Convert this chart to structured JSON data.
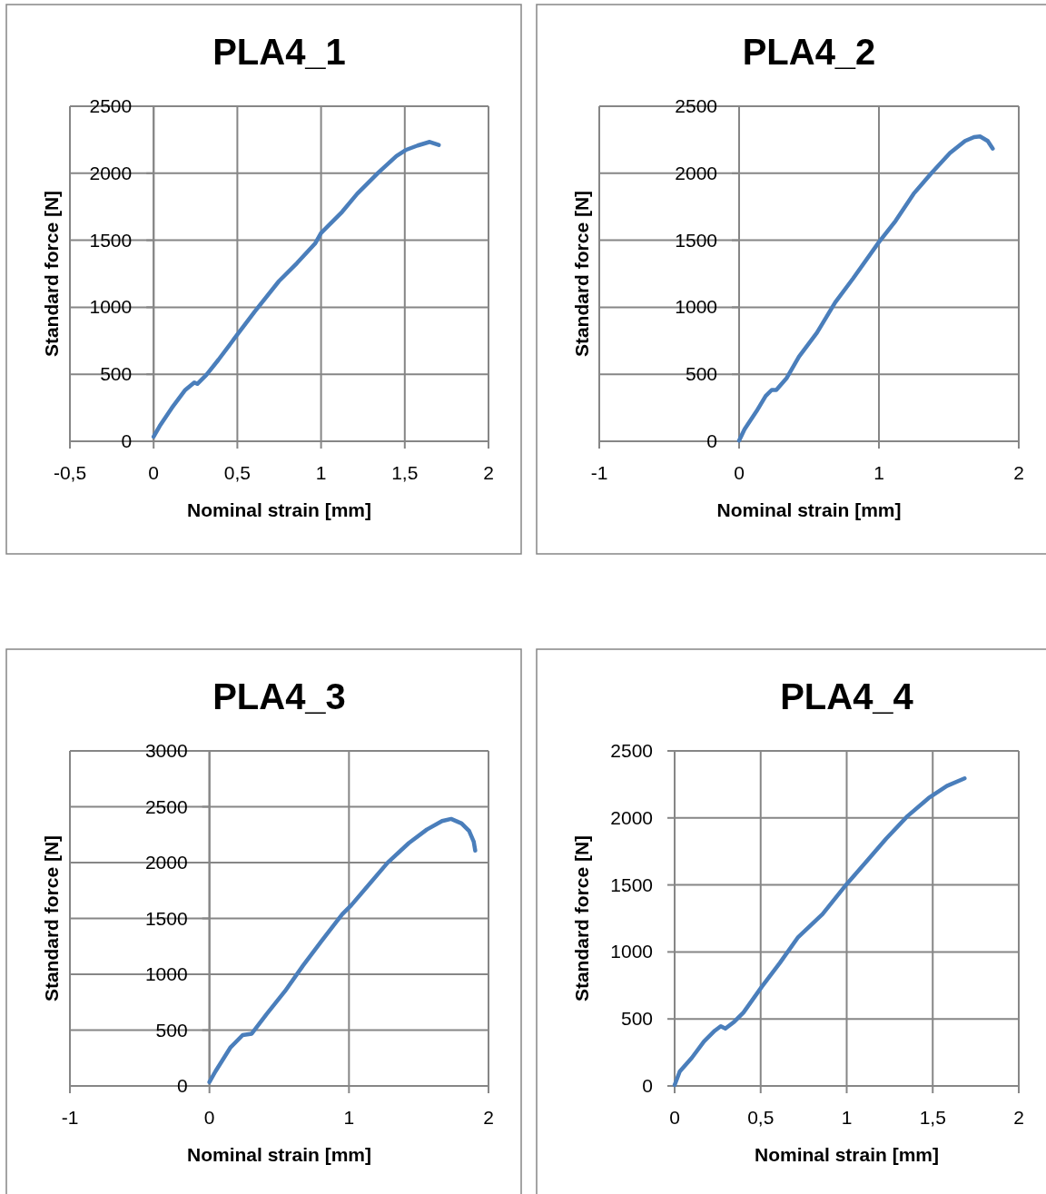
{
  "chart_data": [
    {
      "type": "line",
      "title": "PLA4_1",
      "xlabel": "Nominal strain [mm]",
      "ylabel": "Standard force [N]",
      "xlim": [
        -0.5,
        2
      ],
      "xticks": [
        {
          "value": -0.5,
          "label": "-0,5"
        },
        0,
        {
          "value": 0.5,
          "label": "0,5"
        },
        1,
        {
          "value": 1.5,
          "label": "1,5"
        },
        2
      ],
      "ylim": [
        0,
        2500
      ],
      "yticks": [
        0,
        500,
        1000,
        1500,
        2000,
        2500
      ],
      "grid": true,
      "marker": "none",
      "line_style": "solid",
      "series": [
        {
          "color": "#4a7ebb",
          "x": [
            0,
            0.036,
            0.108,
            0.189,
            0.243,
            0.261,
            0.315,
            0.387,
            0.495,
            0.604,
            0.748,
            0.856,
            0.964,
            1.0,
            1.126,
            1.216,
            1.342,
            1.45,
            1.505,
            1.577,
            1.649,
            1.703
          ],
          "values": [
            34,
            113,
            248,
            383,
            439,
            428,
            495,
            608,
            788,
            968,
            1194,
            1329,
            1475,
            1554,
            1712,
            1847,
            2004,
            2128,
            2173,
            2207,
            2234,
            2211
          ]
        }
      ]
    },
    {
      "type": "line",
      "title": "PLA4_2",
      "xlabel": "Nominal strain [mm]",
      "ylabel": "Standard force [N]",
      "xlim": [
        -1,
        2
      ],
      "xticks": [
        -1,
        0,
        1,
        2
      ],
      "ylim": [
        0,
        2500
      ],
      "yticks": [
        0,
        500,
        1000,
        1500,
        2000,
        2500
      ],
      "grid": true,
      "marker": "none",
      "line_style": "solid",
      "series": [
        {
          "color": "#4a7ebb",
          "x": [
            0,
            0.039,
            0.125,
            0.19,
            0.233,
            0.266,
            0.341,
            0.428,
            0.557,
            0.687,
            0.816,
            1.0,
            1.119,
            1.248,
            1.378,
            1.508,
            1.616,
            1.68,
            1.723,
            1.778,
            1.814
          ],
          "values": [
            5,
            90,
            225,
            338,
            383,
            383,
            473,
            631,
            811,
            1036,
            1216,
            1486,
            1644,
            1847,
            2004,
            2151,
            2241,
            2270,
            2275,
            2241,
            2184
          ]
        }
      ]
    },
    {
      "type": "line",
      "title": "PLA4_3",
      "xlabel": "Nominal strain [mm]",
      "ylabel": "Standard force [N]",
      "xlim": [
        -1,
        2
      ],
      "xticks": [
        -1,
        0,
        1,
        2
      ],
      "ylim": [
        0,
        3000
      ],
      "yticks": [
        0,
        500,
        1000,
        1500,
        2000,
        2500,
        3000
      ],
      "grid": true,
      "marker": "none",
      "line_style": "solid",
      "series": [
        {
          "color": "#4a7ebb",
          "x": [
            0,
            0.043,
            0.152,
            0.238,
            0.303,
            0.411,
            0.541,
            0.671,
            0.801,
            0.952,
            1.017,
            1.147,
            1.277,
            1.429,
            1.558,
            1.667,
            1.732,
            1.807,
            1.861,
            1.894,
            1.905
          ],
          "values": [
            35,
            130,
            347,
            455,
            468,
            645,
            848,
            1078,
            1294,
            1538,
            1619,
            1809,
            1999,
            2175,
            2296,
            2372,
            2391,
            2351,
            2283,
            2188,
            2107
          ]
        }
      ]
    },
    {
      "type": "line",
      "title": "PLA4_4",
      "xlabel": "Nominal strain [mm]",
      "ylabel": "Standard force [N]",
      "xlim": [
        0,
        2
      ],
      "xticks": [
        0,
        {
          "value": 0.5,
          "label": "0,5"
        },
        1,
        {
          "value": 1.5,
          "label": "1,5"
        },
        2
      ],
      "ylim": [
        0,
        2500
      ],
      "yticks": [
        0,
        500,
        1000,
        1500,
        2000,
        2500
      ],
      "grid": true,
      "marker": "none",
      "line_style": "solid",
      "series": [
        {
          "color": "#4a7ebb",
          "x": [
            0,
            0.03,
            0.1,
            0.171,
            0.233,
            0.268,
            0.295,
            0.347,
            0.4,
            0.506,
            0.612,
            0.718,
            0.859,
            1.0,
            1.123,
            1.229,
            1.353,
            1.476,
            1.582,
            1.685
          ],
          "values": [
            7,
            108,
            210,
            333,
            412,
            446,
            428,
            480,
            548,
            739,
            919,
            1111,
            1281,
            1506,
            1687,
            1844,
            2013,
            2148,
            2238,
            2295
          ]
        }
      ]
    }
  ]
}
